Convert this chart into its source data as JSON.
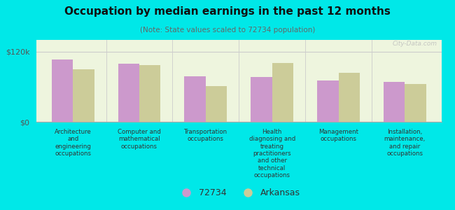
{
  "title": "Occupation by median earnings in the past 12 months",
  "subtitle": "(Note: State values scaled to 72734 population)",
  "background_color": "#00e8e8",
  "plot_bg_color": "#eef5de",
  "bar_color_72734": "#cc99cc",
  "bar_color_arkansas": "#cccc99",
  "ylim": [
    0,
    140000
  ],
  "ytick_vals": [
    0,
    120000
  ],
  "ytick_labels": [
    "$0",
    "$120k"
  ],
  "categories": [
    "Architecture\nand\nengineering\noccupations",
    "Computer and\nmathematical\noccupations",
    "Transportation\noccupations",
    "Health\ndiagnosing and\ntreating\npractitioners\nand other\ntechnical\noccupations",
    "Management\noccupations",
    "Installation,\nmaintenance,\nand repair\noccupations"
  ],
  "values_72734": [
    107000,
    99000,
    78000,
    76000,
    70000,
    68000
  ],
  "values_arkansas": [
    90000,
    97000,
    61000,
    100000,
    84000,
    65000
  ],
  "legend_labels": [
    "72734",
    "Arkansas"
  ],
  "watermark": "City-Data.com"
}
